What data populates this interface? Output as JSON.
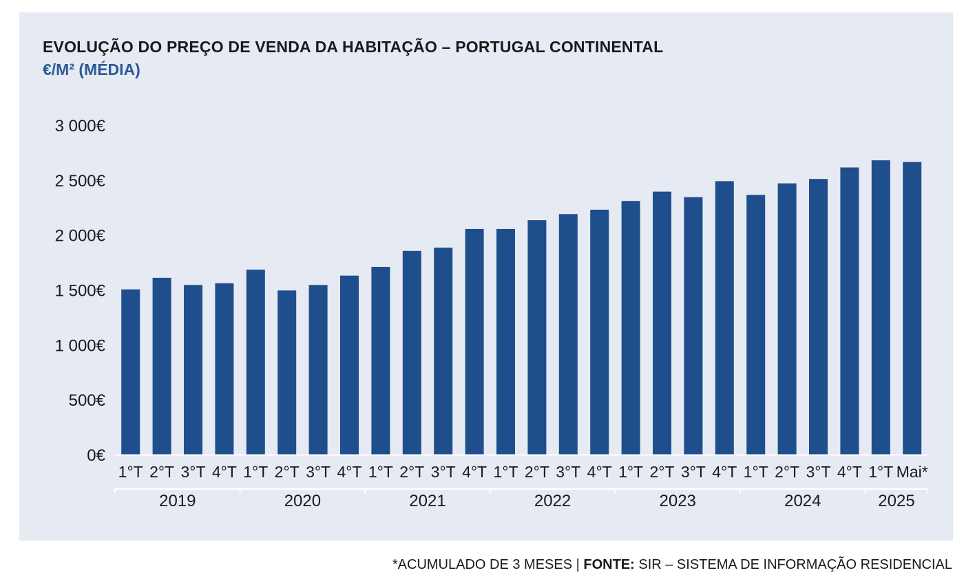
{
  "chart_data": {
    "type": "bar",
    "title": "EVOLUÇÃO DO PREÇO DE VENDA DA HABITAÇÃO – PORTUGAL CONTINENTAL",
    "subtitle": "€/M² (MÉDIA)",
    "categories": [
      "1°T",
      "2°T",
      "3°T",
      "4°T",
      "1°T",
      "2°T",
      "3°T",
      "4°T",
      "1°T",
      "2°T",
      "3°T",
      "4°T",
      "1°T",
      "2°T",
      "3°T",
      "4°T",
      "1°T",
      "2°T",
      "3°T",
      "4°T",
      "1°T",
      "2°T",
      "3°T",
      "4°T",
      "1°T",
      "Mai*"
    ],
    "groups": [
      {
        "label": "2019",
        "count": 4
      },
      {
        "label": "2020",
        "count": 4
      },
      {
        "label": "2021",
        "count": 4
      },
      {
        "label": "2022",
        "count": 4
      },
      {
        "label": "2023",
        "count": 4
      },
      {
        "label": "2024",
        "count": 4
      },
      {
        "label": "2025",
        "count": 2
      }
    ],
    "values": [
      1505,
      1610,
      1545,
      1560,
      1685,
      1495,
      1545,
      1630,
      1710,
      1855,
      1885,
      2055,
      2055,
      2135,
      2190,
      2230,
      2310,
      2395,
      2345,
      2490,
      2365,
      2470,
      2510,
      2615,
      2680,
      2665
    ],
    "ylim": [
      0,
      3000
    ],
    "yticks": [
      {
        "value": 0,
        "label": "0€"
      },
      {
        "value": 500,
        "label": "500€"
      },
      {
        "value": 1000,
        "label": "1 000€"
      },
      {
        "value": 1500,
        "label": "1 500€"
      },
      {
        "value": 2000,
        "label": "2 000€"
      },
      {
        "value": 2500,
        "label": "2 500€"
      },
      {
        "value": 3000,
        "label": "3 000€"
      }
    ],
    "bar_color": "#1f4e8c",
    "grid": false
  },
  "footer": {
    "note": "*ACUMULADO DE 3 MESES | ",
    "source_label": "FONTE:",
    "source_text": " SIR – SISTEMA DE INFORMAÇÃO RESIDENCIAL"
  }
}
